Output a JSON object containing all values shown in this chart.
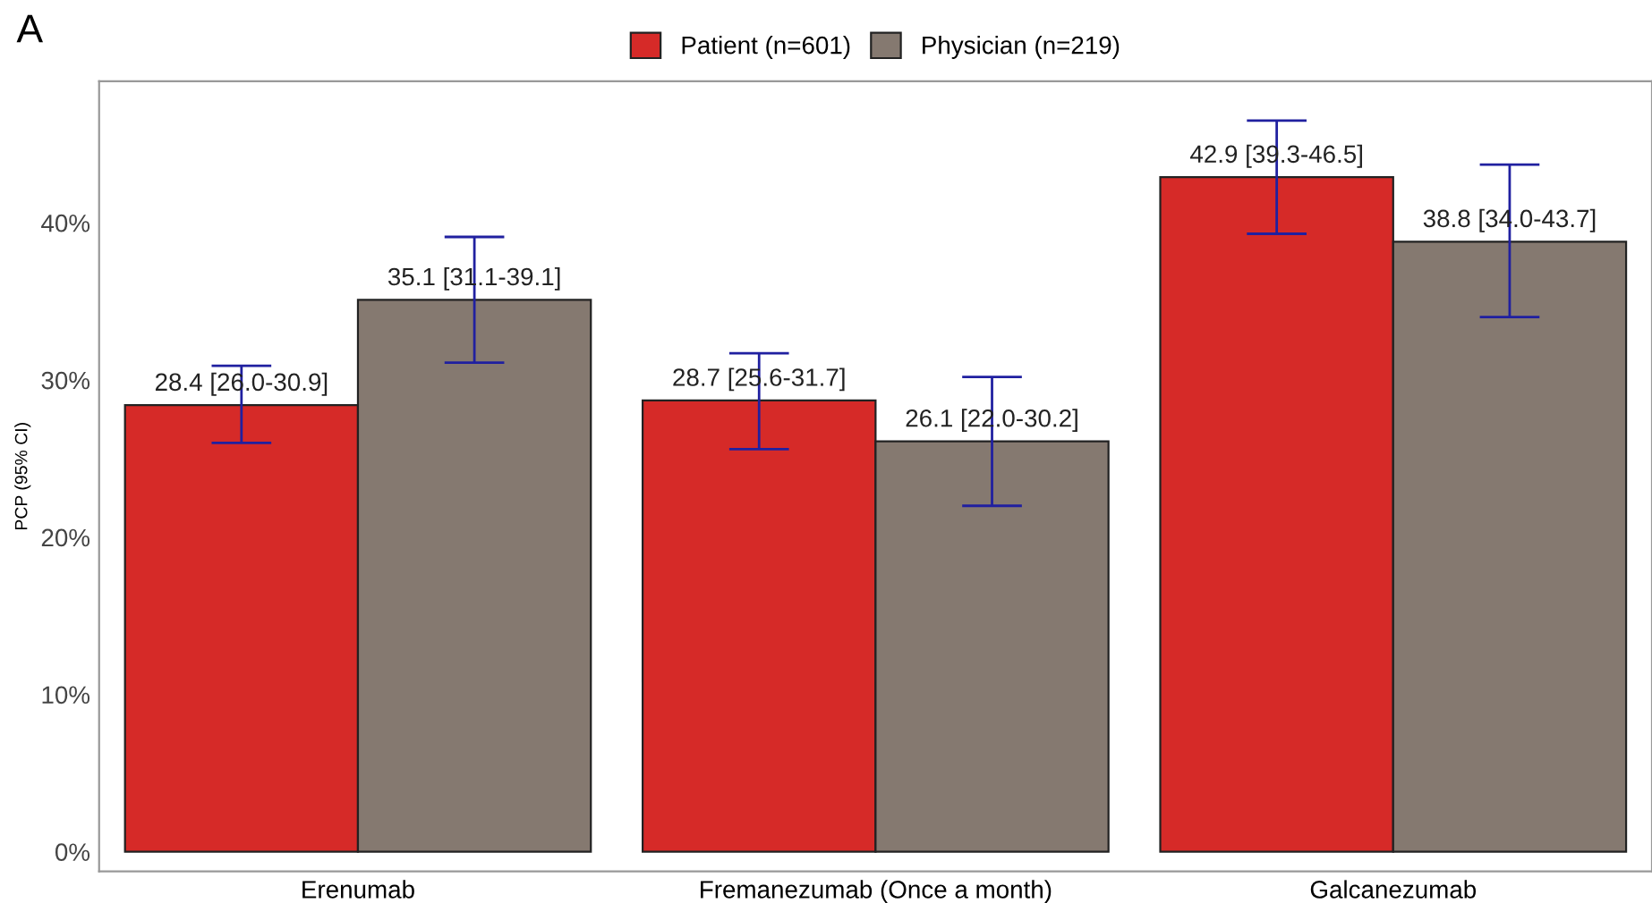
{
  "chart_data": {
    "type": "bar",
    "ylabel": "PCP (95% CI)",
    "annotations": [
      "A"
    ],
    "categories": [
      "Erenumab",
      "Fremanezumab (Once a month)",
      "Galcanezumab"
    ],
    "series": [
      {
        "name": "Patient (n=601)",
        "color": "#d62a28",
        "values": [
          28.4,
          28.7,
          42.9
        ],
        "errors": [
          [
            26.0,
            30.9
          ],
          [
            25.6,
            31.7
          ],
          [
            39.3,
            46.5
          ]
        ],
        "value_labels": [
          "28.4 [26.0-30.9]",
          "28.7 [25.6-31.7]",
          "42.9 [39.3-46.5]"
        ]
      },
      {
        "name": "Physician (n=219)",
        "color": "#857970",
        "values": [
          35.1,
          26.1,
          38.8
        ],
        "errors": [
          [
            31.1,
            39.1
          ],
          [
            22.0,
            30.2
          ],
          [
            34.0,
            43.7
          ]
        ],
        "value_labels": [
          "35.1 [31.1-39.1]",
          "26.1 [22.0-30.2]",
          "38.8 [34.0-43.7]"
        ]
      }
    ],
    "ylim": [
      -1.25,
      49
    ],
    "yticks": [
      {
        "value": 0,
        "label": "0%"
      },
      {
        "value": 10,
        "label": "10%"
      },
      {
        "value": 20,
        "label": "20%"
      },
      {
        "value": 30,
        "label": "30%"
      },
      {
        "value": 40,
        "label": "40%"
      }
    ],
    "grid": false,
    "legend": "top"
  }
}
